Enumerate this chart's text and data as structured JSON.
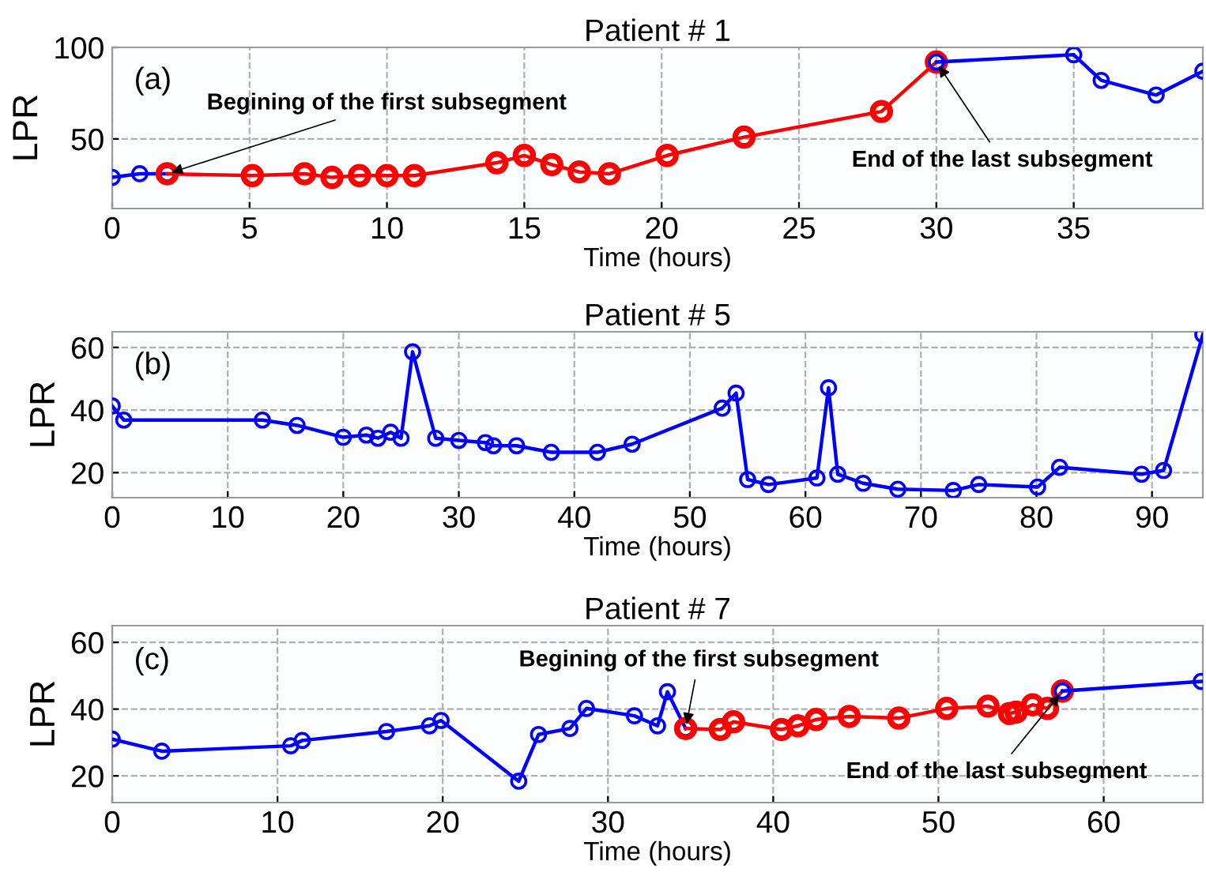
{
  "chart_data": [
    {
      "type": "line",
      "title": "Patient # 1",
      "xlabel": "Time (hours)",
      "ylabel": "LPR",
      "xlim": [
        0,
        39.7
      ],
      "ylim": [
        12,
        100
      ],
      "xticks": [
        0,
        5,
        10,
        15,
        20,
        25,
        30,
        35
      ],
      "yticks": [
        50,
        100
      ],
      "grid": true,
      "marker": "circle",
      "line_style": "solid",
      "annotations": [
        "(a)",
        {
          "text": "Begining of the first subsegment",
          "x": 2,
          "y": 31
        },
        {
          "text": "End of the last subsegment",
          "x": 30,
          "y": 92
        }
      ],
      "series": [
        {
          "color": "#0000ff",
          "x": [
            0,
            1,
            2
          ],
          "values": [
            29,
            31,
            31
          ]
        },
        {
          "color": "#ff0000",
          "x": [
            2,
            5.1,
            7,
            8,
            9,
            10,
            11,
            14,
            15,
            16,
            17,
            18.1,
            20.2,
            23,
            28,
            30
          ],
          "values": [
            31,
            30,
            31,
            29,
            30,
            30,
            30,
            37,
            41,
            36,
            32,
            31,
            41,
            51,
            65,
            92
          ]
        },
        {
          "color": "#0000ff",
          "x": [
            30,
            35,
            36,
            38,
            39.7
          ],
          "values": [
            92,
            96,
            82,
            74,
            87
          ]
        }
      ]
    },
    {
      "type": "line",
      "title": "Patient # 5",
      "xlabel": "Time (hours)",
      "ylabel": "LPR",
      "xlim": [
        0,
        94.4
      ],
      "ylim": [
        12,
        65
      ],
      "xticks": [
        0,
        10,
        20,
        30,
        40,
        50,
        60,
        70,
        80,
        90
      ],
      "yticks": [
        20,
        40,
        60
      ],
      "grid": true,
      "marker": "circle",
      "line_style": "solid",
      "annotations": [
        "(b)"
      ],
      "series": [
        {
          "color": "#0000ff",
          "x": [
            0,
            1,
            13,
            16,
            20,
            22,
            23,
            24.1,
            25,
            26,
            28,
            30,
            32.3,
            33,
            35,
            38,
            42,
            45,
            52.8,
            54,
            55,
            56.8,
            61,
            62,
            62.8,
            65,
            68,
            72.8,
            75,
            80.1,
            82,
            89.1,
            91,
            94.4
          ],
          "values": [
            41.3,
            36.8,
            36.8,
            35.1,
            31.3,
            32,
            31,
            32.9,
            31,
            58.6,
            31,
            30.3,
            29.6,
            28.6,
            28.6,
            26.5,
            26.5,
            29.1,
            40.6,
            45.4,
            17.8,
            16.2,
            18.3,
            47.1,
            19.5,
            16.6,
            14.7,
            14.3,
            16.2,
            15.4,
            21.7,
            19.5,
            20.7,
            64.1
          ]
        }
      ]
    },
    {
      "type": "line",
      "title": "Patient # 7",
      "xlabel": "Time (hours)",
      "ylabel": "LPR",
      "xlim": [
        0,
        66
      ],
      "ylim": [
        12,
        65
      ],
      "xticks": [
        0,
        10,
        20,
        30,
        40,
        50,
        60
      ],
      "yticks": [
        20,
        40,
        60
      ],
      "grid": true,
      "marker": "circle",
      "line_style": "solid",
      "annotations": [
        "(c)",
        {
          "text": "Begining of the first subsegment",
          "x": 34.7,
          "y": 34.2
        },
        {
          "text": "End of the last subsegment",
          "x": 57.5,
          "y": 45.4
        }
      ],
      "series": [
        {
          "color": "#0000ff",
          "x": [
            0,
            3,
            10.8,
            11.5,
            16.6,
            19.2,
            19.9,
            24.6,
            25.8,
            27.7,
            28.7,
            31.6,
            33,
            33.6,
            34.7
          ],
          "values": [
            31,
            27.4,
            29,
            30.6,
            33.3,
            35,
            36.6,
            18.4,
            32.4,
            34.2,
            40.2,
            38,
            35,
            45.2,
            34.2
          ]
        },
        {
          "color": "#ff0000",
          "x": [
            34.7,
            36.8,
            37.6,
            40.5,
            41.5,
            42.6,
            44.6,
            47.6,
            50.5,
            53,
            54.3,
            54.7,
            55.7,
            56.6,
            57.5
          ],
          "values": [
            34.2,
            33.9,
            36.2,
            33.9,
            35,
            36.9,
            37.8,
            37.3,
            40.2,
            40.9,
            38.7,
            39.1,
            41.3,
            40.2,
            45.4
          ]
        },
        {
          "color": "#0000ff",
          "x": [
            57.5,
            65.9
          ],
          "values": [
            45.4,
            48.3
          ]
        }
      ]
    }
  ]
}
